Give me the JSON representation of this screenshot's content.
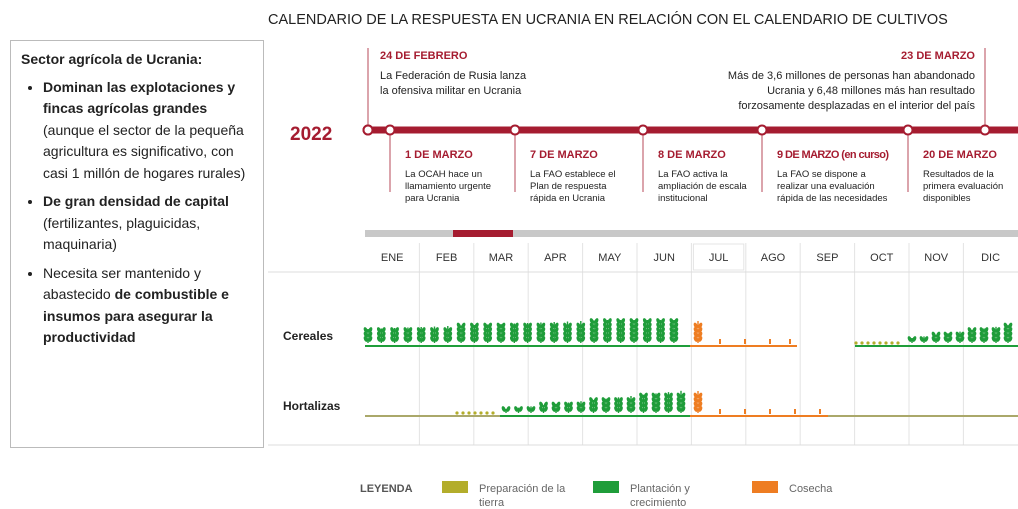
{
  "title": "CALENDARIO DE LA RESPUESTA EN UCRANIA EN RELACIÓN CON EL CALENDARIO DE CULTIVOS",
  "sidebar": {
    "heading": "Sector agrícola de Ucrania:",
    "bullets": [
      [
        {
          "text": "Dominan las explotaciones y fincas agrícolas grandes",
          "bold": true
        },
        {
          "text": " (aunque el sector de la pequeña agricultura es significativo, con casi 1 millón de hogares rurales)",
          "bold": false
        }
      ],
      [
        {
          "text": "De gran densidad de capital",
          "bold": true
        },
        {
          "text": " (fertilizantes, plaguicidas, maquinaria)",
          "bold": false
        }
      ],
      [
        {
          "text": "Necesita ser mantenido y abastecido ",
          "bold": false
        },
        {
          "text": "de combustible e insumos para asegurar la productividad",
          "bold": true
        }
      ]
    ]
  },
  "timeline": {
    "year": "2022",
    "events_above": [
      {
        "date": "24 DE FEBRERO",
        "lines": [
          "La Federación de Rusia lanza",
          "la ofensiva militar en Ucrania"
        ]
      },
      {
        "date": "23 DE MARZO",
        "lines": [
          "Más de 3,6 millones de personas han abandonado",
          "Ucrania y 6,48 millones más han resultado",
          "forzosamente desplazadas en el interior del país"
        ]
      }
    ],
    "events_below": [
      {
        "date": "1 DE MARZO",
        "lines": [
          "La OCAH hace un",
          "llamamiento urgente",
          "para Ucrania"
        ]
      },
      {
        "date": "7 DE MARZO",
        "lines": [
          "La FAO establece el",
          "Plan de respuesta",
          "rápida en Ucrania"
        ]
      },
      {
        "date": "8 DE MARZO",
        "lines": [
          "La FAO activa la",
          "ampliación de escala",
          "institucional"
        ]
      },
      {
        "date": "9 DE MARZO (en curso)",
        "lines": [
          "La FAO se dispone a",
          "realizar una evaluación",
          "rápida de las necesidades"
        ]
      },
      {
        "date": "20 DE MARZO",
        "lines": [
          "Resultados de la",
          "primera evaluación",
          "disponibles"
        ]
      }
    ]
  },
  "months": [
    "ENE",
    "FEB",
    "MAR",
    "APR",
    "MAY",
    "JUN",
    "JUL",
    "AGO",
    "SEP",
    "OCT",
    "NOV",
    "DIC"
  ],
  "rows": [
    "Cereales",
    "Hortalizas"
  ],
  "legend": {
    "label": "LEYENDA",
    "items": [
      {
        "name": "Preparación de la tierra",
        "color": "#b3ad2b"
      },
      {
        "name": "Plantación y crecimiento",
        "color": "#1f9d3a"
      },
      {
        "name": "Cosecha",
        "color": "#ee7d22"
      }
    ]
  }
}
